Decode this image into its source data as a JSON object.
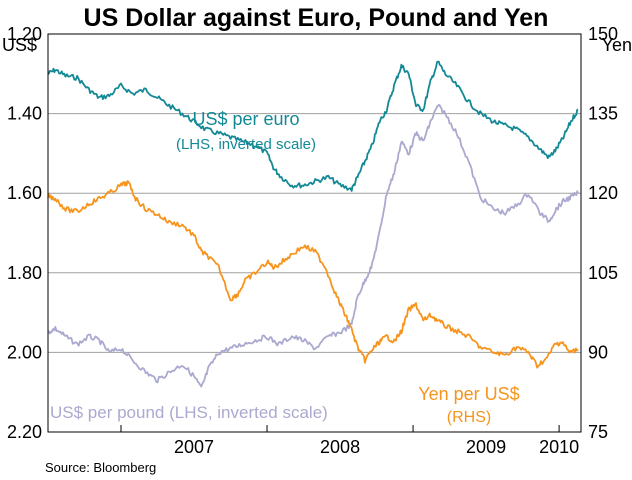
{
  "colors": {
    "euro": "#138996",
    "pound": "#aaa9cf",
    "yen": "#f7941d",
    "grid": "#a0a0a0",
    "frame": "#000000"
  },
  "source": "Source: Bloomberg",
  "chart_data": {
    "type": "line",
    "title": "US Dollar against Euro, Pound and Yen",
    "left_axis": {
      "unit": "US$",
      "range": [
        1.2,
        2.2
      ],
      "inverted": true,
      "ticks": [
        "1.20",
        "1.40",
        "1.60",
        "1.80",
        "2.00",
        "2.20"
      ]
    },
    "right_axis": {
      "unit": "Yen",
      "range": [
        75,
        150
      ],
      "ticks": [
        "150",
        "135",
        "120",
        "105",
        "90",
        "75"
      ]
    },
    "x_axis": {
      "range": [
        2006.5,
        2010.15
      ],
      "ticks": [
        "2007",
        "2008",
        "2009",
        "2010"
      ],
      "tick_positions": [
        2007.5,
        2008.5,
        2009.5,
        2010.0
      ]
    },
    "grid": true,
    "series": [
      {
        "name": "US$ per euro",
        "label": "US$ per euro",
        "label_note": "(LHS, inverted scale)",
        "axis": "left",
        "points": [
          [
            2006.5,
            1.3
          ],
          [
            2006.55,
            1.29
          ],
          [
            2006.62,
            1.305
          ],
          [
            2006.7,
            1.31
          ],
          [
            2006.78,
            1.34
          ],
          [
            2006.85,
            1.36
          ],
          [
            2006.92,
            1.355
          ],
          [
            2007.0,
            1.33
          ],
          [
            2007.08,
            1.35
          ],
          [
            2007.17,
            1.34
          ],
          [
            2007.25,
            1.36
          ],
          [
            2007.33,
            1.38
          ],
          [
            2007.42,
            1.4
          ],
          [
            2007.5,
            1.42
          ],
          [
            2007.58,
            1.44
          ],
          [
            2007.67,
            1.45
          ],
          [
            2007.75,
            1.46
          ],
          [
            2007.83,
            1.47
          ],
          [
            2007.92,
            1.48
          ],
          [
            2008.0,
            1.5
          ],
          [
            2008.05,
            1.54
          ],
          [
            2008.1,
            1.56
          ],
          [
            2008.17,
            1.58
          ],
          [
            2008.25,
            1.58
          ],
          [
            2008.33,
            1.57
          ],
          [
            2008.42,
            1.56
          ],
          [
            2008.5,
            1.58
          ],
          [
            2008.58,
            1.59
          ],
          [
            2008.62,
            1.56
          ],
          [
            2008.67,
            1.52
          ],
          [
            2008.72,
            1.48
          ],
          [
            2008.77,
            1.42
          ],
          [
            2008.82,
            1.39
          ],
          [
            2008.87,
            1.33
          ],
          [
            2008.92,
            1.28
          ],
          [
            2008.97,
            1.3
          ],
          [
            2009.02,
            1.38
          ],
          [
            2009.07,
            1.39
          ],
          [
            2009.12,
            1.32
          ],
          [
            2009.17,
            1.27
          ],
          [
            2009.22,
            1.3
          ],
          [
            2009.3,
            1.33
          ],
          [
            2009.38,
            1.37
          ],
          [
            2009.46,
            1.4
          ],
          [
            2009.55,
            1.42
          ],
          [
            2009.63,
            1.43
          ],
          [
            2009.71,
            1.44
          ],
          [
            2009.79,
            1.46
          ],
          [
            2009.87,
            1.49
          ],
          [
            2009.93,
            1.51
          ],
          [
            2009.98,
            1.49
          ],
          [
            2010.03,
            1.46
          ],
          [
            2010.08,
            1.42
          ],
          [
            2010.13,
            1.39
          ]
        ]
      },
      {
        "name": "US$ per pound",
        "label": "US$ per pound (LHS, inverted scale)",
        "axis": "left",
        "points": [
          [
            2006.5,
            1.95
          ],
          [
            2006.55,
            1.94
          ],
          [
            2006.62,
            1.96
          ],
          [
            2006.7,
            1.98
          ],
          [
            2006.78,
            1.96
          ],
          [
            2006.85,
            1.97
          ],
          [
            2006.92,
            2.0
          ],
          [
            2007.0,
            1.99
          ],
          [
            2007.08,
            2.02
          ],
          [
            2007.17,
            2.05
          ],
          [
            2007.25,
            2.07
          ],
          [
            2007.33,
            2.05
          ],
          [
            2007.42,
            2.03
          ],
          [
            2007.5,
            2.06
          ],
          [
            2007.55,
            2.09
          ],
          [
            2007.6,
            2.04
          ],
          [
            2007.67,
            2.0
          ],
          [
            2007.75,
            1.99
          ],
          [
            2007.83,
            1.98
          ],
          [
            2007.92,
            1.97
          ],
          [
            2008.0,
            1.96
          ],
          [
            2008.08,
            1.98
          ],
          [
            2008.17,
            1.96
          ],
          [
            2008.25,
            1.97
          ],
          [
            2008.33,
            1.99
          ],
          [
            2008.42,
            1.96
          ],
          [
            2008.5,
            1.95
          ],
          [
            2008.58,
            1.93
          ],
          [
            2008.62,
            1.86
          ],
          [
            2008.67,
            1.82
          ],
          [
            2008.72,
            1.78
          ],
          [
            2008.77,
            1.7
          ],
          [
            2008.82,
            1.6
          ],
          [
            2008.87,
            1.55
          ],
          [
            2008.92,
            1.47
          ],
          [
            2008.97,
            1.5
          ],
          [
            2009.02,
            1.45
          ],
          [
            2009.07,
            1.47
          ],
          [
            2009.12,
            1.42
          ],
          [
            2009.17,
            1.38
          ],
          [
            2009.22,
            1.4
          ],
          [
            2009.3,
            1.45
          ],
          [
            2009.38,
            1.52
          ],
          [
            2009.46,
            1.61
          ],
          [
            2009.55,
            1.64
          ],
          [
            2009.63,
            1.65
          ],
          [
            2009.71,
            1.63
          ],
          [
            2009.79,
            1.6
          ],
          [
            2009.87,
            1.65
          ],
          [
            2009.93,
            1.67
          ],
          [
            2009.98,
            1.64
          ],
          [
            2010.03,
            1.62
          ],
          [
            2010.08,
            1.61
          ],
          [
            2010.13,
            1.6
          ]
        ]
      },
      {
        "name": "Yen per US$",
        "label": "Yen per US$",
        "label_note": "(RHS)",
        "axis": "right",
        "points": [
          [
            2006.5,
            119.5
          ],
          [
            2006.55,
            119.0
          ],
          [
            2006.62,
            117.0
          ],
          [
            2006.7,
            116.5
          ],
          [
            2006.78,
            118.0
          ],
          [
            2006.85,
            119.0
          ],
          [
            2006.92,
            120.0
          ],
          [
            2007.0,
            121.5
          ],
          [
            2007.05,
            122.0
          ],
          [
            2007.1,
            119.0
          ],
          [
            2007.17,
            117.0
          ],
          [
            2007.25,
            116.0
          ],
          [
            2007.33,
            114.5
          ],
          [
            2007.42,
            114.0
          ],
          [
            2007.5,
            112.0
          ],
          [
            2007.55,
            109.0
          ],
          [
            2007.6,
            108.0
          ],
          [
            2007.67,
            106.0
          ],
          [
            2007.75,
            100.0
          ],
          [
            2007.8,
            101.0
          ],
          [
            2007.85,
            103.5
          ],
          [
            2007.92,
            105.0
          ],
          [
            2008.0,
            107.0
          ],
          [
            2008.05,
            106.0
          ],
          [
            2008.1,
            107.0
          ],
          [
            2008.17,
            108.5
          ],
          [
            2008.25,
            110.0
          ],
          [
            2008.33,
            109.0
          ],
          [
            2008.4,
            106.0
          ],
          [
            2008.47,
            101.0
          ],
          [
            2008.52,
            98.0
          ],
          [
            2008.57,
            95.0
          ],
          [
            2008.62,
            91.0
          ],
          [
            2008.67,
            88.5
          ],
          [
            2008.72,
            90.5
          ],
          [
            2008.77,
            92.0
          ],
          [
            2008.82,
            93.0
          ],
          [
            2008.87,
            92.0
          ],
          [
            2008.92,
            94.0
          ],
          [
            2008.97,
            98.0
          ],
          [
            2009.02,
            99.0
          ],
          [
            2009.07,
            96.0
          ],
          [
            2009.12,
            97.0
          ],
          [
            2009.17,
            96.0
          ],
          [
            2009.22,
            95.0
          ],
          [
            2009.3,
            94.0
          ],
          [
            2009.38,
            93.0
          ],
          [
            2009.46,
            91.0
          ],
          [
            2009.55,
            90.0
          ],
          [
            2009.63,
            89.5
          ],
          [
            2009.71,
            91.0
          ],
          [
            2009.79,
            90.0
          ],
          [
            2009.85,
            87.5
          ],
          [
            2009.92,
            89.0
          ],
          [
            2009.97,
            91.5
          ],
          [
            2010.02,
            92.0
          ],
          [
            2010.07,
            90.0
          ],
          [
            2010.13,
            90.5
          ]
        ]
      }
    ]
  }
}
